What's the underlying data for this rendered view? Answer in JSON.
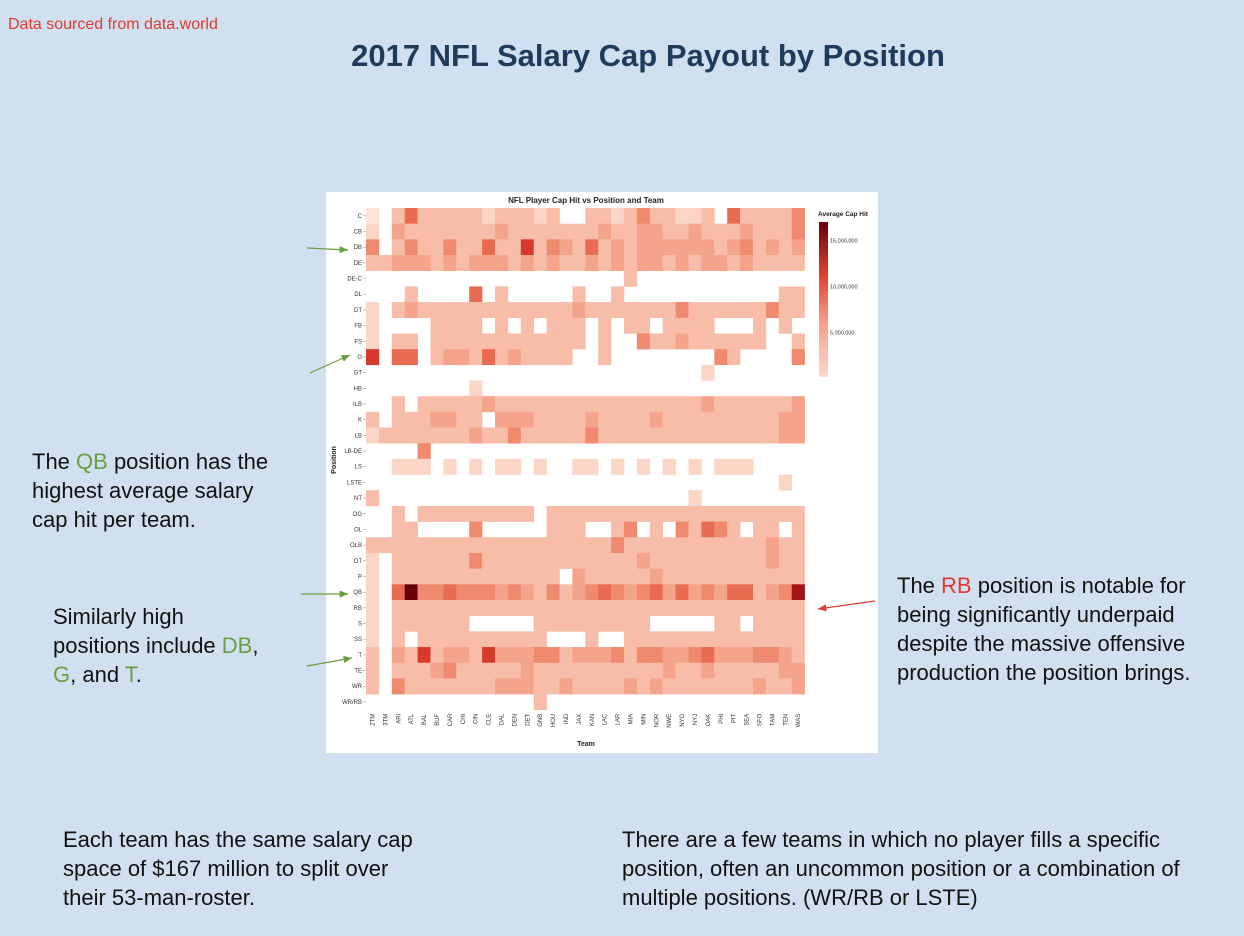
{
  "header": {
    "source_note": "Data sourced from data.world",
    "title": "2017 NFL Salary Cap Payout by Position"
  },
  "annotations": {
    "qb_note": {
      "pre": "The ",
      "highlight": "QB",
      "post": " position has the highest average salary cap hit per team."
    },
    "similar_note": {
      "pre": "Similarly high positions include ",
      "db": "DB",
      "comma1": ", ",
      "g": "G",
      "and": ", and ",
      "t": "T",
      "end": "."
    },
    "rb_note": {
      "pre": "The ",
      "highlight": "RB",
      "post": " position is notable for being significantly underpaid despite the massive offensive production the position brings."
    },
    "cap_note": "Each team has the same salary cap space of $167 million to split over their 53-man-roster.",
    "missing_note": "There are a few teams in which no player fills a specific position, often an uncommon position or a combination of multiple positions. (WR/RB or LSTE)"
  },
  "colors": {
    "background": "#d1e0f0",
    "title": "#1f3b5c",
    "highlight_green": "#6a9f3f",
    "highlight_red": "#e03a2e",
    "scale_low": "#fbd9cd",
    "scale_high": "#67000d"
  },
  "chart_data": {
    "type": "heatmap",
    "title": "NFL Player Cap Hit vs Position and Team",
    "xlabel": "Team",
    "ylabel": "Position",
    "legend_title": "Average Cap Hit",
    "legend_ticks": [
      "15,000,000",
      "10,000,000",
      "5,000,000"
    ],
    "legend_tick_values": [
      15000000,
      10000000,
      5000000
    ],
    "value_range": [
      200000,
      17000000
    ],
    "teams": [
      "2TM",
      "3TM",
      "ARI",
      "ATL",
      "BAL",
      "BUF",
      "CAR",
      "CHI",
      "CIN",
      "CLE",
      "DAL",
      "DEN",
      "DET",
      "GNB",
      "HOU",
      "IND",
      "JAX",
      "KAN",
      "LAC",
      "LAR",
      "MIA",
      "MIN",
      "NOR",
      "NWE",
      "NYG",
      "NYJ",
      "OAK",
      "PHI",
      "PIT",
      "SEA",
      "SFO",
      "TAM",
      "TEN",
      "WAS"
    ],
    "positions": [
      "C",
      "CB",
      "DB",
      "DE",
      "DE-C",
      "DL",
      "DT",
      "FB",
      "FS",
      "G",
      "GT",
      "HB",
      "ILB",
      "K",
      "LB",
      "LB-DE",
      "LS",
      "LSTE",
      "NT",
      "OG",
      "OL",
      "OLB",
      "OT",
      "P",
      "QB",
      "RB",
      "S",
      "SS",
      "T",
      "TE",
      "WR",
      "WR/RB"
    ],
    "rows": {
      "C": [
        1,
        0,
        3,
        6,
        3,
        3,
        3,
        3,
        3,
        2,
        3,
        3,
        3,
        2,
        3,
        0,
        0,
        3,
        3,
        2,
        3,
        5,
        3,
        3,
        2,
        2,
        3,
        0,
        6,
        3,
        3,
        3,
        3,
        5
      ],
      "CB": [
        2,
        0,
        4,
        3,
        3,
        3,
        3,
        3,
        3,
        3,
        4,
        3,
        3,
        3,
        3,
        3,
        3,
        3,
        4,
        3,
        3,
        4,
        4,
        3,
        3,
        4,
        3,
        3,
        3,
        4,
        3,
        3,
        3,
        5
      ],
      "DB": [
        5,
        0,
        3,
        5,
        3,
        3,
        5,
        3,
        3,
        6,
        3,
        3,
        7,
        3,
        5,
        4,
        3,
        6,
        3,
        4,
        3,
        4,
        4,
        4,
        4,
        4,
        4,
        3,
        4,
        5,
        3,
        4,
        3,
        4
      ],
      "DE": [
        3,
        3,
        4,
        4,
        4,
        3,
        4,
        3,
        4,
        4,
        4,
        3,
        4,
        3,
        4,
        3,
        3,
        4,
        3,
        4,
        3,
        4,
        4,
        3,
        4,
        3,
        4,
        4,
        3,
        4,
        3,
        3,
        3,
        3
      ],
      "DE-C": [
        0,
        0,
        0,
        0,
        0,
        0,
        0,
        0,
        0,
        0,
        0,
        0,
        0,
        0,
        0,
        0,
        0,
        0,
        0,
        0,
        3,
        0,
        0,
        0,
        0,
        0,
        0,
        0,
        0,
        0,
        0,
        0,
        0,
        0
      ],
      "DL": [
        0,
        0,
        0,
        3,
        0,
        0,
        0,
        0,
        6,
        0,
        3,
        0,
        0,
        0,
        0,
        0,
        3,
        0,
        0,
        3,
        0,
        0,
        0,
        0,
        0,
        0,
        0,
        0,
        0,
        0,
        0,
        0,
        3,
        3
      ],
      "DT": [
        2,
        0,
        3,
        4,
        3,
        3,
        3,
        3,
        3,
        3,
        3,
        3,
        3,
        3,
        3,
        3,
        4,
        3,
        3,
        3,
        3,
        3,
        3,
        3,
        5,
        3,
        3,
        3,
        3,
        3,
        3,
        5,
        3,
        3
      ],
      "FB": [
        2,
        0,
        0,
        0,
        0,
        3,
        3,
        3,
        3,
        0,
        3,
        0,
        3,
        0,
        3,
        3,
        3,
        0,
        3,
        0,
        3,
        3,
        0,
        3,
        3,
        3,
        3,
        0,
        0,
        0,
        3,
        0,
        3,
        0
      ],
      "FS": [
        2,
        0,
        3,
        3,
        0,
        3,
        3,
        3,
        3,
        3,
        3,
        3,
        3,
        3,
        3,
        3,
        3,
        0,
        3,
        0,
        0,
        5,
        3,
        3,
        4,
        3,
        3,
        3,
        3,
        3,
        3,
        0,
        0,
        3
      ],
      "G": [
        7,
        0,
        6,
        6,
        0,
        3,
        4,
        4,
        3,
        6,
        3,
        4,
        3,
        3,
        3,
        3,
        0,
        0,
        3,
        0,
        0,
        0,
        0,
        0,
        0,
        0,
        0,
        5,
        3,
        0,
        0,
        0,
        0,
        5
      ],
      "GT": [
        0,
        0,
        0,
        0,
        0,
        0,
        0,
        0,
        0,
        0,
        0,
        0,
        0,
        0,
        0,
        0,
        0,
        0,
        0,
        0,
        0,
        0,
        0,
        0,
        0,
        0,
        2,
        0,
        0,
        0,
        0,
        0,
        0,
        0
      ],
      "HB": [
        0,
        0,
        0,
        0,
        0,
        0,
        0,
        0,
        2,
        0,
        0,
        0,
        0,
        0,
        0,
        0,
        0,
        0,
        0,
        0,
        0,
        0,
        0,
        0,
        0,
        0,
        0,
        0,
        0,
        0,
        0,
        0,
        0,
        0
      ],
      "ILB": [
        0,
        0,
        3,
        0,
        3,
        3,
        3,
        3,
        3,
        4,
        3,
        3,
        3,
        3,
        3,
        3,
        3,
        3,
        3,
        3,
        3,
        3,
        3,
        3,
        3,
        3,
        4,
        3,
        3,
        3,
        3,
        3,
        3,
        4
      ],
      "K": [
        3,
        0,
        3,
        3,
        3,
        4,
        4,
        3,
        3,
        0,
        4,
        4,
        4,
        3,
        3,
        3,
        3,
        4,
        3,
        3,
        3,
        3,
        4,
        3,
        3,
        3,
        3,
        3,
        3,
        3,
        3,
        3,
        4,
        4
      ],
      "LB": [
        2,
        3,
        3,
        3,
        3,
        3,
        3,
        3,
        4,
        3,
        3,
        5,
        3,
        3,
        3,
        3,
        3,
        5,
        3,
        3,
        3,
        3,
        3,
        3,
        3,
        3,
        3,
        3,
        3,
        3,
        3,
        3,
        4,
        4
      ],
      "LB-DE": [
        0,
        0,
        0,
        0,
        5,
        0,
        0,
        0,
        0,
        0,
        0,
        0,
        0,
        0,
        0,
        0,
        0,
        0,
        0,
        0,
        0,
        0,
        0,
        0,
        0,
        0,
        0,
        0,
        0,
        0,
        0,
        0,
        0,
        0
      ],
      "LS": [
        0,
        0,
        2,
        2,
        2,
        0,
        2,
        0,
        2,
        0,
        2,
        2,
        0,
        2,
        0,
        0,
        2,
        2,
        0,
        2,
        0,
        2,
        0,
        2,
        0,
        2,
        0,
        2,
        2,
        2,
        0,
        0,
        0,
        0
      ],
      "LSTE": [
        0,
        0,
        0,
        0,
        0,
        0,
        0,
        0,
        0,
        0,
        0,
        0,
        0,
        0,
        0,
        0,
        0,
        0,
        0,
        0,
        0,
        0,
        0,
        0,
        0,
        0,
        0,
        0,
        0,
        0,
        0,
        0,
        2,
        0
      ],
      "NT": [
        3,
        0,
        0,
        0,
        0,
        0,
        0,
        0,
        0,
        0,
        0,
        0,
        0,
        0,
        0,
        0,
        0,
        0,
        0,
        0,
        0,
        0,
        0,
        0,
        0,
        2,
        0,
        0,
        0,
        0,
        0,
        0,
        0,
        0
      ],
      "OG": [
        0,
        0,
        3,
        0,
        3,
        3,
        3,
        3,
        3,
        3,
        3,
        3,
        3,
        0,
        3,
        3,
        3,
        3,
        3,
        3,
        3,
        3,
        3,
        3,
        3,
        3,
        3,
        3,
        3,
        3,
        3,
        3,
        3,
        3
      ],
      "OL": [
        0,
        0,
        3,
        3,
        0,
        0,
        0,
        0,
        5,
        0,
        0,
        0,
        0,
        0,
        3,
        3,
        3,
        0,
        0,
        3,
        5,
        0,
        3,
        0,
        5,
        3,
        6,
        5,
        3,
        0,
        3,
        3,
        0,
        3
      ],
      "OLB": [
        3,
        3,
        3,
        3,
        3,
        3,
        3,
        3,
        3,
        3,
        3,
        3,
        3,
        3,
        3,
        3,
        3,
        3,
        3,
        5,
        3,
        3,
        3,
        3,
        3,
        3,
        3,
        3,
        3,
        3,
        3,
        4,
        3,
        3
      ],
      "OT": [
        2,
        0,
        3,
        3,
        3,
        3,
        3,
        3,
        5,
        3,
        3,
        3,
        3,
        3,
        3,
        3,
        3,
        3,
        3,
        3,
        3,
        4,
        3,
        3,
        3,
        3,
        3,
        3,
        3,
        3,
        3,
        4,
        3,
        3
      ],
      "P": [
        2,
        0,
        3,
        3,
        3,
        3,
        3,
        3,
        3,
        3,
        3,
        3,
        3,
        3,
        3,
        0,
        4,
        3,
        3,
        3,
        3,
        3,
        4,
        3,
        3,
        3,
        3,
        3,
        3,
        3,
        3,
        3,
        3,
        3
      ],
      "QB": [
        2,
        0,
        6,
        9,
        5,
        5,
        6,
        5,
        5,
        5,
        4,
        5,
        4,
        3,
        5,
        3,
        4,
        5,
        6,
        5,
        4,
        5,
        6,
        4,
        6,
        4,
        5,
        4,
        6,
        6,
        3,
        4,
        5,
        8
      ],
      "RB": [
        2,
        0,
        3,
        3,
        3,
        3,
        3,
        3,
        3,
        3,
        3,
        3,
        3,
        3,
        3,
        3,
        3,
        3,
        3,
        3,
        3,
        3,
        3,
        3,
        3,
        3,
        3,
        3,
        3,
        3,
        3,
        3,
        3,
        3
      ],
      "S": [
        2,
        0,
        3,
        3,
        3,
        3,
        3,
        3,
        0,
        0,
        0,
        0,
        0,
        3,
        3,
        3,
        3,
        3,
        3,
        3,
        3,
        3,
        0,
        0,
        0,
        0,
        0,
        3,
        3,
        0,
        3,
        3,
        3,
        3
      ],
      "SS": [
        2,
        0,
        3,
        0,
        3,
        3,
        3,
        3,
        3,
        3,
        3,
        3,
        3,
        3,
        0,
        0,
        0,
        3,
        0,
        0,
        3,
        3,
        3,
        3,
        3,
        3,
        3,
        3,
        3,
        3,
        3,
        3,
        3,
        3
      ],
      "T": [
        3,
        0,
        4,
        3,
        7,
        3,
        4,
        4,
        3,
        7,
        4,
        4,
        4,
        5,
        5,
        3,
        4,
        4,
        4,
        5,
        3,
        5,
        5,
        4,
        4,
        5,
        6,
        4,
        4,
        4,
        5,
        5,
        4,
        3
      ],
      "TE": [
        3,
        0,
        3,
        3,
        3,
        4,
        5,
        3,
        3,
        3,
        3,
        3,
        4,
        3,
        3,
        3,
        3,
        3,
        3,
        3,
        3,
        3,
        3,
        4,
        3,
        3,
        4,
        3,
        3,
        3,
        3,
        3,
        4,
        4
      ],
      "WR": [
        3,
        0,
        5,
        3,
        3,
        3,
        3,
        3,
        3,
        3,
        4,
        4,
        4,
        3,
        3,
        4,
        3,
        3,
        3,
        3,
        4,
        3,
        4,
        3,
        3,
        3,
        3,
        3,
        3,
        3,
        4,
        3,
        3,
        4
      ],
      "WR/RB": [
        0,
        0,
        0,
        0,
        0,
        0,
        0,
        0,
        0,
        0,
        0,
        0,
        0,
        3,
        0,
        0,
        0,
        0,
        0,
        0,
        0,
        0,
        0,
        0,
        0,
        0,
        0,
        0,
        0,
        0,
        0,
        0,
        0,
        0
      ]
    },
    "legend_placement": "right",
    "color_scale": "light pink to dark red"
  }
}
